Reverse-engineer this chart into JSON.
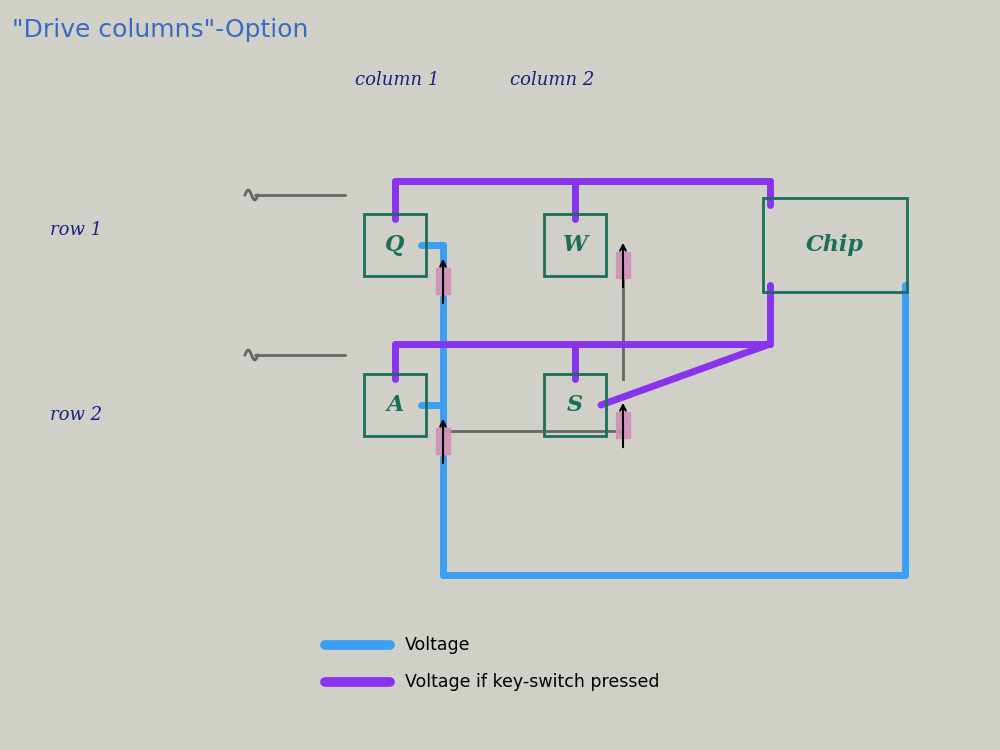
{
  "title": "\"Drive columns\"-Option",
  "title_color": "#3a6bc4",
  "title_fontsize": 18,
  "bg_color": "#d0d0c8",
  "col1_label": "column 1",
  "col2_label": "column 2",
  "row1_label": "row 1",
  "row2_label": "row 2",
  "handwriting_color": "#1a237e",
  "switch_color": "#1b6e5a",
  "chip_color": "#1b6e5a",
  "blue_wire": "#3a9ff5",
  "purple_wire": "#8833ee",
  "diode_pink": "#d090b8",
  "arrow_color": "#111111",
  "gray_wire": "#666666",
  "legend_voltage": "Voltage",
  "legend_pressed": "Voltage if key-switch pressed",
  "lw_wire": 5.0,
  "lw_gray": 2.0,
  "lw_switch": 2.0
}
